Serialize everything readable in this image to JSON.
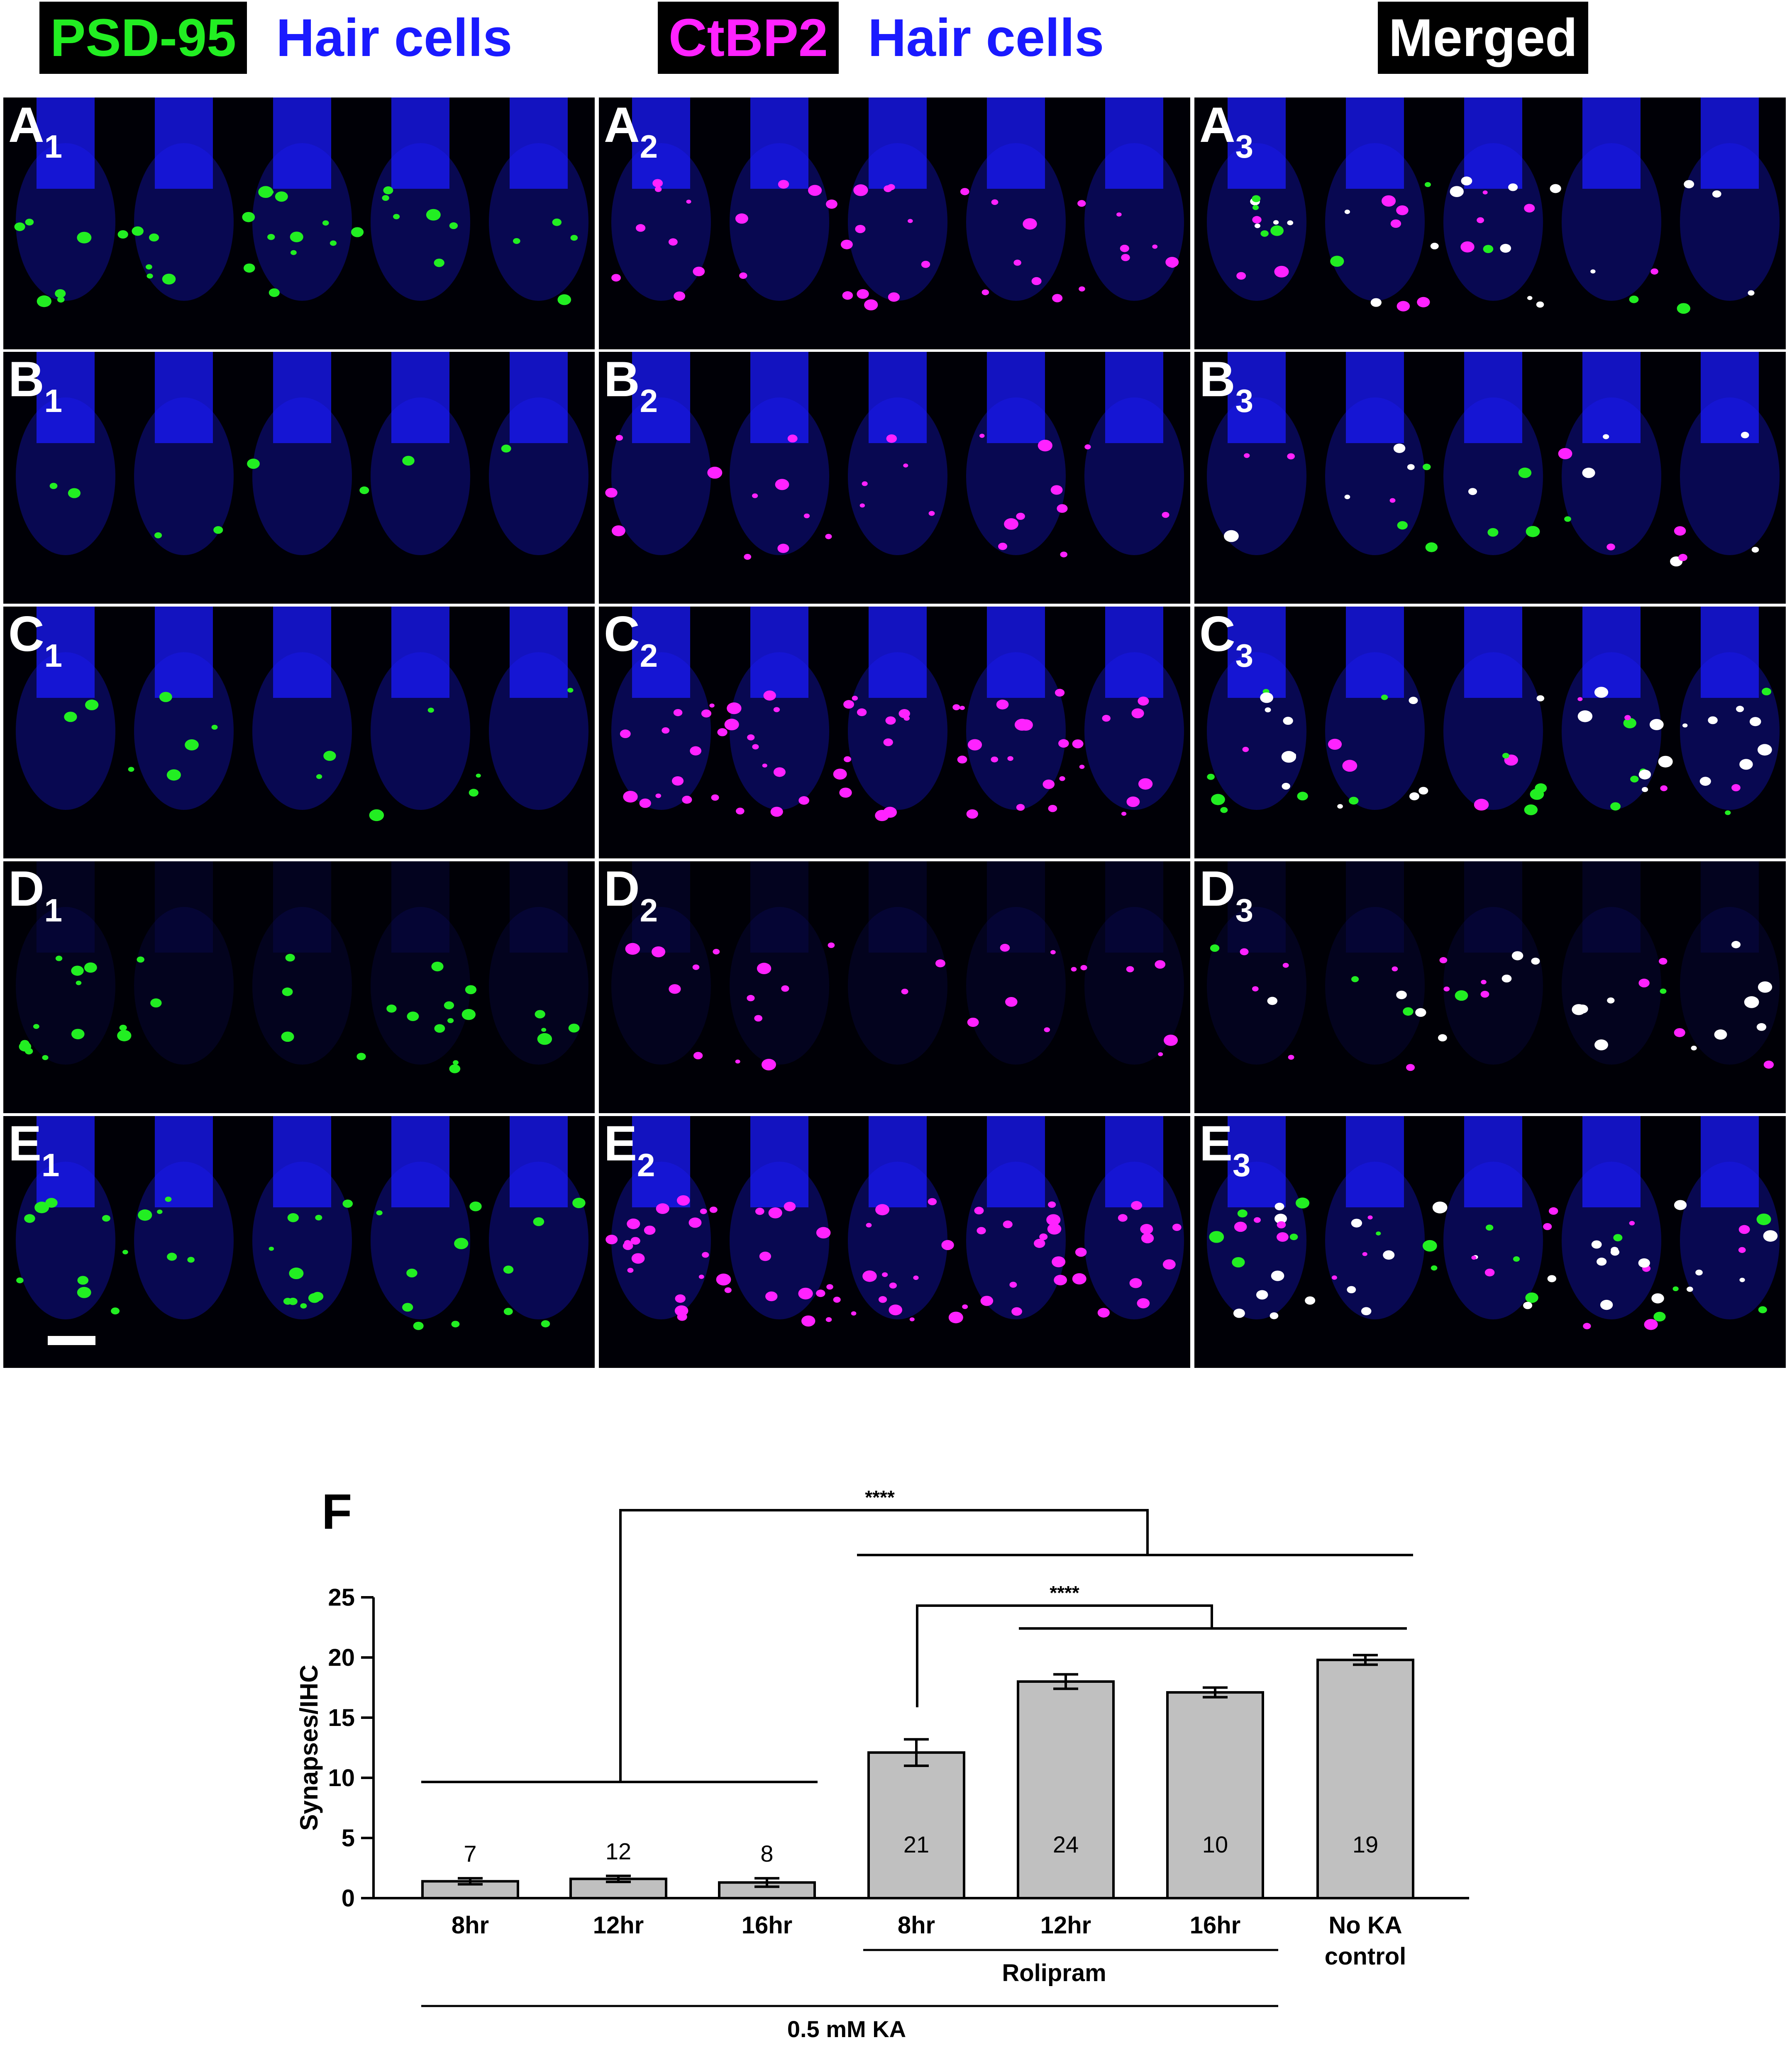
{
  "header": {
    "col1_marker": "PSD-95",
    "col1_cells": "Hair cells",
    "col2_marker": "CtBP2",
    "col2_cells": "Hair cells",
    "col3": "Merged"
  },
  "colors": {
    "psd95": "#22ee22",
    "ctbp2": "#ff22ff",
    "hair_cells": "#1a1aff",
    "bar_fill": "#c0c0c0"
  },
  "panels": {
    "rows": [
      "A",
      "B",
      "C",
      "D",
      "E"
    ],
    "cols": [
      "1",
      "2",
      "3"
    ]
  },
  "chart_data": {
    "type": "bar",
    "panel_label": "F",
    "ylabel": "Synapses/IHC",
    "ylim": [
      0,
      25
    ],
    "yticks": [
      "0",
      "5",
      "10",
      "15",
      "20",
      "25"
    ],
    "categories": [
      "8hr",
      "12hr",
      "16hr",
      "8hr",
      "12hr",
      "16hr",
      "No KA control"
    ],
    "category_lines": [
      [
        "8hr"
      ],
      [
        "12hr"
      ],
      [
        "16hr"
      ],
      [
        "8hr"
      ],
      [
        "12hr"
      ],
      [
        "16hr"
      ],
      [
        "No KA",
        "control"
      ]
    ],
    "values": [
      1.4,
      1.6,
      1.3,
      12.1,
      18.0,
      17.1,
      19.8
    ],
    "errors": [
      0.25,
      0.25,
      0.35,
      1.1,
      0.6,
      0.4,
      0.4
    ],
    "n_labels": [
      "7",
      "12",
      "8",
      "21",
      "24",
      "10",
      "19"
    ],
    "group_labels": {
      "rolipram": "Rolipram",
      "ka": "0.5 mM KA"
    },
    "significance": [
      "****",
      "****"
    ]
  }
}
